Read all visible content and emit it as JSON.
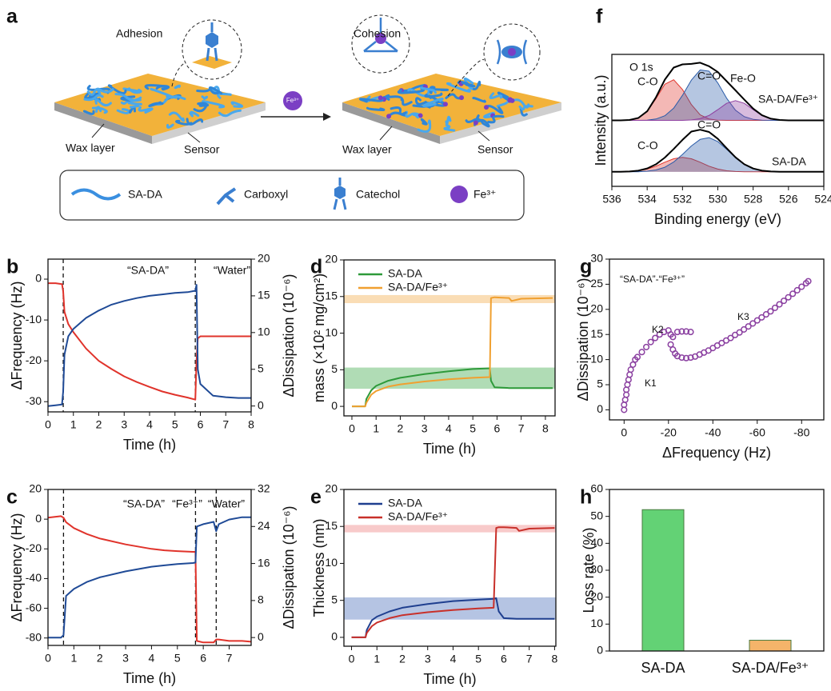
{
  "schematic": {
    "label": "a",
    "adhesion": "Adhesion",
    "cohesion": "Cohesion",
    "left_labels": [
      "Wax layer",
      "Sensor"
    ],
    "right_labels": [
      "Wax layer",
      "Sensor"
    ],
    "ion": "Fe³⁺",
    "legend": [
      "SA-DA",
      "Carboxyl",
      "Catechol",
      "Fe³⁺"
    ]
  },
  "chart_data": [
    {
      "label": "b",
      "type": "line",
      "xlabel": "Time (h)",
      "ylabel": "ΔFrequency (Hz)",
      "y2label": "ΔDissipation (10⁻⁶)",
      "xlim": [
        0,
        8
      ],
      "xticks": [
        0,
        1,
        2,
        3,
        4,
        5,
        6,
        7,
        8
      ],
      "ylim": [
        -32.5,
        4.9
      ],
      "yticks": [
        0,
        -10,
        -20,
        -30
      ],
      "y2lim": [
        -0.8,
        20
      ],
      "y2ticks": [
        0,
        5,
        10,
        15,
        20
      ],
      "vlines": [
        0.6,
        5.8
      ],
      "annotations": [
        "“SA-DA”",
        "“Water”"
      ],
      "x": [
        0,
        0.3,
        0.55,
        0.6,
        0.65,
        0.8,
        1,
        1.5,
        2,
        2.5,
        3,
        3.5,
        4,
        4.5,
        5,
        5.5,
        5.8,
        5.85,
        5.9,
        6,
        6.5,
        7,
        7.5,
        8
      ],
      "series": [
        {
          "color": "#e0332b",
          "values": [
            -1,
            -1,
            -1.2,
            -3,
            -8,
            -11,
            -13,
            -17,
            -20,
            -22,
            -23.8,
            -25.2,
            -26.4,
            -27.5,
            -28.3,
            -29,
            -29.5,
            -20,
            -14.5,
            -14,
            -14,
            -14,
            -14,
            -14
          ]
        },
        {
          "color": "#1f4a96",
          "axis": "y2",
          "values": [
            0,
            0.1,
            0.2,
            2,
            7,
            9.5,
            10.5,
            12,
            13,
            13.8,
            14.3,
            14.7,
            15,
            15.2,
            15.4,
            15.5,
            15.7,
            16.5,
            5,
            3,
            1.4,
            1.2,
            1.1,
            1.1
          ]
        }
      ]
    },
    {
      "label": "c",
      "type": "line",
      "xlabel": "Time (h)",
      "ylabel": "ΔFrequency (Hz)",
      "y2label": "ΔDissipation (10⁻⁶)",
      "xlim": [
        0,
        7.85
      ],
      "xticks": [
        0,
        1,
        2,
        3,
        4,
        5,
        6,
        7
      ],
      "ylim": [
        -85,
        20
      ],
      "yticks": [
        20,
        0,
        -20,
        -40,
        -60,
        -80
      ],
      "y2lim": [
        -1.7,
        32
      ],
      "y2ticks": [
        0,
        8,
        16,
        24,
        32
      ],
      "vlines": [
        0.6,
        5.7,
        6.5
      ],
      "annotations": [
        "“SA-DA”",
        "“Fe³⁺”",
        "“Water”"
      ],
      "x": [
        0,
        0.5,
        0.6,
        0.7,
        1,
        1.5,
        2,
        3,
        4,
        4.5,
        5,
        5.6,
        5.7,
        5.75,
        6,
        6.4,
        6.5,
        6.6,
        7,
        7.5,
        7.85
      ],
      "series": [
        {
          "color": "#e0332b",
          "values": [
            1,
            2,
            1,
            -2,
            -6,
            -10,
            -13,
            -17,
            -20,
            -21,
            -21.5,
            -22,
            -22,
            -82,
            -83,
            -83,
            -81,
            -81,
            -82,
            -82,
            -82.5
          ]
        },
        {
          "color": "#1f4a96",
          "axis": "y2",
          "values": [
            0,
            0,
            0.5,
            9,
            10.5,
            12,
            13,
            14.3,
            15.3,
            15.6,
            15.9,
            16.1,
            16.2,
            24,
            24.5,
            25,
            23,
            24.5,
            25.5,
            26,
            26
          ]
        }
      ]
    },
    {
      "label": "d",
      "type": "line",
      "xlabel": "Time (h)",
      "ylabel": "mass (×10² mg/cm²)",
      "legend": "top-left",
      "xlim": [
        -0.33,
        8.4
      ],
      "xticks": [
        0,
        1,
        2,
        3,
        4,
        5,
        6,
        7,
        8
      ],
      "ylim": [
        -1.3,
        20
      ],
      "yticks": [
        0,
        5,
        10,
        15,
        20
      ],
      "bands": [
        {
          "from": 2.4,
          "to": 5.3,
          "color": "#4fb25a"
        },
        {
          "from": 14.1,
          "to": 15.2,
          "color": "#f5b45a"
        }
      ],
      "x": [
        0,
        0.55,
        0.6,
        0.8,
        1,
        1.5,
        2,
        3,
        4,
        5,
        5.7,
        5.75,
        5.9,
        6.5,
        6.6,
        7,
        8.3
      ],
      "series": [
        {
          "name": "SA-DA",
          "color": "#2e9a3a",
          "values": [
            0,
            0,
            1,
            2.2,
            2.8,
            3.5,
            3.9,
            4.4,
            4.8,
            5.1,
            5.2,
            3.5,
            2.6,
            2.5,
            2.5,
            2.5,
            2.5
          ]
        },
        {
          "name": "SA-DA/Fe³⁺",
          "color": "#f0a030",
          "values": [
            0,
            0,
            0.5,
            1.6,
            2.1,
            2.7,
            3,
            3.4,
            3.7,
            3.9,
            4,
            14.8,
            14.9,
            14.8,
            14.4,
            14.7,
            14.8
          ]
        }
      ]
    },
    {
      "label": "e",
      "type": "line",
      "xlabel": "Time (h)",
      "ylabel": "Thickness (nm)",
      "legend": "top-left",
      "xlim": [
        -0.3,
        8.05
      ],
      "xticks": [
        0,
        1,
        2,
        3,
        4,
        5,
        6,
        7,
        8
      ],
      "ylim": [
        -1.2,
        20
      ],
      "yticks": [
        0,
        5,
        10,
        15,
        20
      ],
      "bands": [
        {
          "from": 2.4,
          "to": 5.4,
          "color": "#5a7cc0"
        },
        {
          "from": 14.2,
          "to": 15.2,
          "color": "#f08a8a"
        }
      ],
      "x": [
        0,
        0.55,
        0.6,
        0.8,
        1,
        1.5,
        2,
        3,
        4,
        5,
        5.6,
        5.7,
        5.8,
        6,
        6.5,
        6.6,
        7,
        8
      ],
      "series": [
        {
          "name": "SA-DA",
          "color": "#1f3f8f",
          "values": [
            0,
            0,
            1,
            2.3,
            2.8,
            3.5,
            4,
            4.5,
            4.9,
            5.1,
            5.2,
            5.3,
            3.5,
            2.6,
            2.5,
            2.5,
            2.5,
            2.5
          ]
        },
        {
          "name": "SA-DA/Fe³⁺",
          "color": "#c8302a",
          "values": [
            0,
            0,
            0.6,
            1.5,
            2,
            2.6,
            3,
            3.4,
            3.7,
            3.9,
            4,
            14.8,
            14.9,
            14.9,
            14.8,
            14.4,
            14.7,
            14.8
          ]
        }
      ]
    },
    {
      "label": "f",
      "type": "line",
      "xlabel": "Binding energy (eV)",
      "ylabel": "Intensity (a.u.)",
      "xlim": [
        536,
        524
      ],
      "xticks": [
        536,
        534,
        532,
        530,
        528,
        526,
        524
      ],
      "ylim": [
        0,
        100
      ],
      "annotations": [
        {
          "text": "O 1s",
          "color": "#000"
        },
        {
          "text": "C-O",
          "color": "#e0332b"
        },
        {
          "text": "C=O",
          "color": "#2a5ba8"
        },
        {
          "text": "Fe-O",
          "color": "#8e3fa0"
        },
        {
          "text": "SA-DA/Fe³⁺",
          "color": "#000"
        },
        {
          "text": "C-O",
          "color": "#e0332b"
        },
        {
          "text": "C=O",
          "color": "#2a5ba8"
        },
        {
          "text": "SA-DA",
          "color": "#000"
        }
      ],
      "x": [
        536,
        535.5,
        535,
        534.5,
        534,
        533.5,
        533,
        532.5,
        532,
        531.5,
        531,
        530.5,
        530,
        529.5,
        529,
        528.5,
        528,
        527.5,
        527,
        526.5,
        526,
        525.5,
        525,
        524.5,
        524
      ],
      "series": [
        {
          "color": "#e0332b",
          "fill": true,
          "values": [
            50,
            50,
            50.3,
            51.8,
            56.7,
            66.5,
            77.4,
            80.8,
            73.4,
            62,
            54.2,
            51,
            50.2,
            50,
            50,
            50,
            50,
            50,
            50,
            50,
            50,
            50,
            50,
            50,
            50
          ]
        },
        {
          "color": "#2a5ba8",
          "fill": true,
          "values": [
            50,
            50,
            50,
            50,
            50.2,
            51,
            53.5,
            59.2,
            69,
            80.5,
            88.2,
            87.3,
            78.3,
            66.8,
            57.7,
            52.8,
            50.8,
            50.2,
            50,
            50,
            50,
            50,
            50,
            50,
            50
          ]
        },
        {
          "color": "#8e3fa0",
          "fill": true,
          "values": [
            50,
            50,
            50,
            50,
            50,
            50,
            50,
            50,
            50,
            50.3,
            51.3,
            53.7,
            58.1,
            62.9,
            65,
            62.9,
            58.1,
            53.7,
            51.3,
            50.3,
            50,
            50,
            50,
            50,
            50
          ]
        },
        {
          "color": "#000000",
          "values": [
            50,
            50,
            50.3,
            51.8,
            56.9,
            67.5,
            80.9,
            90,
            92.4,
            92.8,
            93.7,
            91,
            86.6,
            79.7,
            72.7,
            65.7,
            58.9,
            53.9,
            51.3,
            50.3,
            50,
            50,
            50,
            50,
            50
          ]
        },
        {
          "color": "#e0332b",
          "fill": true,
          "values": [
            11,
            11.1,
            11.3,
            11.8,
            13.1,
            15.3,
            18.3,
            20.9,
            22,
            20.9,
            18.3,
            15.3,
            13.1,
            11.8,
            11.3,
            11.1,
            11,
            11,
            11,
            11,
            11,
            11,
            11,
            11,
            11
          ]
        },
        {
          "color": "#2a5ba8",
          "fill": true,
          "values": [
            11,
            11,
            11,
            11.1,
            11.5,
            12.4,
            14.5,
            18.4,
            24.2,
            30.6,
            35.6,
            36.9,
            33.9,
            28.1,
            21.7,
            16.6,
            13.5,
            11.9,
            11.3,
            11,
            11,
            11,
            11,
            11,
            11
          ]
        },
        {
          "color": "#000000",
          "values": [
            11,
            11.1,
            11.3,
            11.9,
            13.6,
            16.7,
            21.8,
            28.3,
            35.2,
            41.5,
            42.9,
            41.2,
            36,
            28.9,
            22,
            16.7,
            13.5,
            11.9,
            11.3,
            11,
            11,
            11,
            11,
            11,
            11
          ]
        }
      ]
    },
    {
      "label": "g",
      "type": "scatter",
      "xlabel": "ΔFrequency (Hz)",
      "ylabel": "ΔDissipation (10⁻⁶)",
      "xlim": [
        6.6,
        -90
      ],
      "xticks": [
        0,
        -20,
        -40,
        -60,
        -80
      ],
      "ylim": [
        -2,
        30
      ],
      "yticks": [
        0,
        5,
        10,
        15,
        20,
        25,
        30
      ],
      "annotations": [
        "“SA-DA”-“Fe³⁺”",
        "K2",
        "K3",
        "K1"
      ],
      "series": [
        {
          "color": "#8a3fa0",
          "x": [
            0,
            0,
            -0.5,
            -1,
            -1,
            -1.5,
            -2,
            -2.5,
            -3,
            -4,
            -5,
            -6,
            -8,
            -10,
            -12,
            -14,
            -16,
            -18,
            -20,
            -21,
            -22,
            -24,
            -26,
            -28,
            -30,
            -21,
            -22,
            -23,
            -24,
            -26,
            -28,
            -30,
            -32,
            -34,
            -36,
            -38,
            -40,
            -42,
            -44,
            -46,
            -48,
            -50,
            -52,
            -54,
            -56,
            -58,
            -60,
            -62,
            -64,
            -66,
            -68,
            -70,
            -72,
            -74,
            -76,
            -78,
            -80,
            -82,
            -83
          ],
          "values": [
            0,
            1,
            2,
            3,
            4,
            5,
            6,
            7,
            8,
            9,
            10,
            10.5,
            11.5,
            12.5,
            13.5,
            14.3,
            15,
            15.5,
            15.8,
            15,
            14.5,
            15.5,
            15.6,
            15.6,
            15.5,
            13,
            12,
            11.2,
            10.7,
            10.4,
            10.3,
            10.4,
            10.6,
            11,
            11.4,
            11.8,
            12.3,
            12.8,
            13.3,
            13.8,
            14.3,
            14.9,
            15.4,
            16,
            16.6,
            17.2,
            17.8,
            18.4,
            19,
            19.6,
            20.3,
            21,
            21.7,
            22.4,
            23.1,
            23.8,
            24.5,
            25.2,
            25.6
          ]
        }
      ]
    },
    {
      "label": "h",
      "type": "bar",
      "ylabel": "Loss rate (%)",
      "ylim": [
        0,
        60
      ],
      "yticks": [
        0,
        10,
        20,
        30,
        40,
        50,
        60
      ],
      "categories": [
        "SA-DA",
        "SA-DA/Fe³⁺"
      ],
      "values": [
        52.5,
        4
      ],
      "colors": [
        "#63d275",
        "#f5b46a"
      ]
    }
  ]
}
